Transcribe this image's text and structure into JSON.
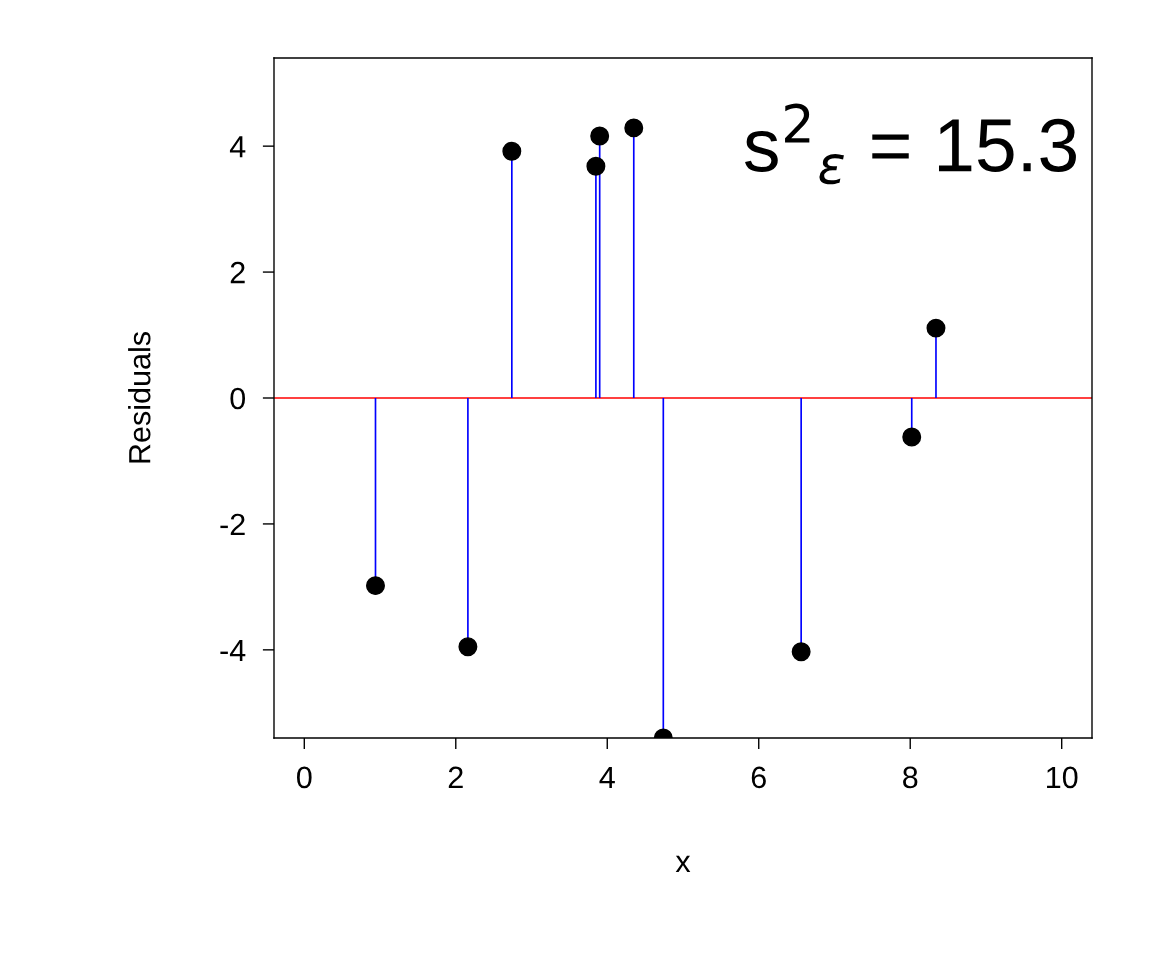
{
  "chart_data": {
    "type": "lollipop",
    "xlabel": "x",
    "ylabel": "Residuals",
    "x": [
      0.94,
      2.16,
      2.74,
      3.85,
      3.9,
      4.35,
      4.74,
      6.56,
      8.02,
      8.34
    ],
    "series": [
      {
        "color": "#000000",
        "values": [
          -2.98,
          -3.95,
          3.92,
          3.68,
          4.16,
          4.29,
          -5.4,
          -4.03,
          -0.62,
          1.11
        ]
      }
    ],
    "xlim": [
      -0.4,
      10.4
    ],
    "ylim": [
      -5.4,
      5.4
    ],
    "xticks": [
      0,
      2,
      4,
      6,
      8,
      10
    ],
    "yticks": [
      -4,
      -2,
      0,
      2,
      4
    ],
    "ref_lines": [
      {
        "axis": "y",
        "value": 0,
        "color": "#ff0000"
      }
    ],
    "annotations": [
      "s$^{2}$$_{ε}$ = 15.3"
    ],
    "marker": "circle",
    "grid": false,
    "legend": false
  }
}
